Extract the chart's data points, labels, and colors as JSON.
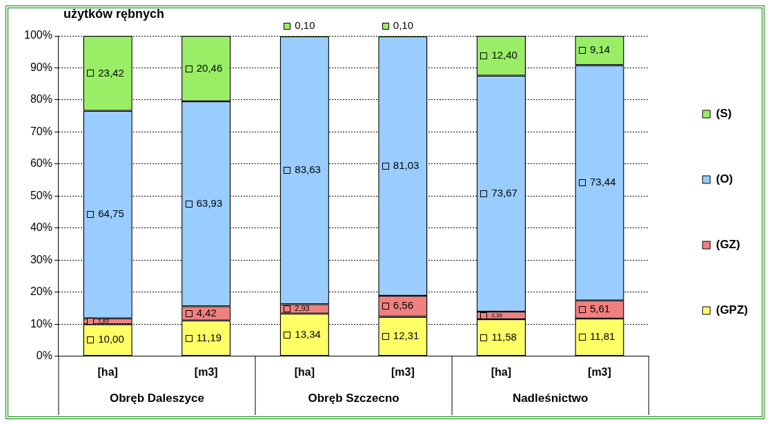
{
  "chart_data": {
    "type": "bar",
    "title": "użytków rębnych",
    "stacked": true,
    "categories": [
      "[ha]",
      "[m3]",
      "[ha]",
      "[m3]",
      "[ha]",
      "[m3]"
    ],
    "annotations": [
      "Obręb Daleszyce",
      "Obręb Szczecno",
      "Nadleśnictwo"
    ],
    "series": [
      {
        "name": "(GPZ)",
        "color": "#ffff66",
        "values": [
          10.0,
          11.19,
          13.34,
          12.31,
          11.58,
          11.81
        ],
        "value_labels": [
          "10,00",
          "11,19",
          "13,34",
          "12,31",
          "11,58",
          "11,81"
        ]
      },
      {
        "name": "(GZ)",
        "color": "#f08080",
        "values": [
          1.83,
          4.42,
          2.93,
          6.56,
          2.35,
          5.61
        ],
        "value_labels": [
          "1,83",
          "4,42",
          "2,93",
          "6,56",
          "2,35",
          "5,61"
        ]
      },
      {
        "name": "(O)",
        "color": "#99ccff",
        "values": [
          64.75,
          63.93,
          83.63,
          81.03,
          73.67,
          73.44
        ],
        "value_labels": [
          "64,75",
          "63,93",
          "83,63",
          "81,03",
          "73,67",
          "73,44"
        ]
      },
      {
        "name": "(S)",
        "color": "#99ee66",
        "values": [
          23.42,
          20.46,
          0.1,
          0.1,
          12.4,
          9.14
        ],
        "value_labels": [
          "23,42",
          "20,46",
          "0,10",
          "0,10",
          "12,40",
          "9,14"
        ]
      }
    ],
    "ylim": [
      0,
      100
    ],
    "yticks": [
      {
        "value": 0,
        "label": "0%"
      },
      {
        "value": 10,
        "label": "10%"
      },
      {
        "value": 20,
        "label": "20%"
      },
      {
        "value": 30,
        "label": "30%"
      },
      {
        "value": 40,
        "label": "40%"
      },
      {
        "value": 50,
        "label": "50%"
      },
      {
        "value": 60,
        "label": "60%"
      },
      {
        "value": 70,
        "label": "70%"
      },
      {
        "value": 80,
        "label": "80%"
      },
      {
        "value": 90,
        "label": "90%"
      },
      {
        "value": 100,
        "label": "100%"
      }
    ],
    "grid": "y",
    "legend": "right"
  }
}
